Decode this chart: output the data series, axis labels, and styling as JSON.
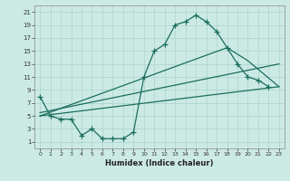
{
  "title": "",
  "xlabel": "Humidex (Indice chaleur)",
  "background_color": "#cceae4",
  "grid_color": "#aad4cc",
  "line_color": "#1a6e5e",
  "xlim": [
    -0.5,
    23.5
  ],
  "ylim": [
    0,
    22
  ],
  "xticks": [
    0,
    1,
    2,
    3,
    4,
    5,
    6,
    7,
    8,
    9,
    10,
    11,
    12,
    13,
    14,
    15,
    16,
    17,
    18,
    19,
    20,
    21,
    22,
    23
  ],
  "yticks": [
    1,
    3,
    5,
    7,
    9,
    11,
    13,
    15,
    17,
    19,
    21
  ],
  "line1_x": [
    0,
    1,
    2,
    3,
    4,
    5,
    6,
    7,
    8,
    9,
    10,
    11,
    12,
    13,
    14,
    15,
    16,
    17,
    18,
    19,
    20,
    21,
    22
  ],
  "line1_y": [
    8,
    5,
    4.5,
    4.5,
    2,
    3,
    1.5,
    1.5,
    1.5,
    2.5,
    11,
    15,
    16,
    19,
    19.5,
    20.5,
    19.5,
    18,
    15.5,
    13,
    11,
    10.5,
    9.5
  ],
  "line2_x": [
    0,
    23
  ],
  "line2_y": [
    5,
    9.5
  ],
  "line3_x": [
    0,
    18,
    20,
    23
  ],
  "line3_y": [
    5,
    15.5,
    13.5,
    9.5
  ],
  "line4_x": [
    0,
    23
  ],
  "line4_y": [
    5.5,
    13
  ],
  "marker_size": 4
}
